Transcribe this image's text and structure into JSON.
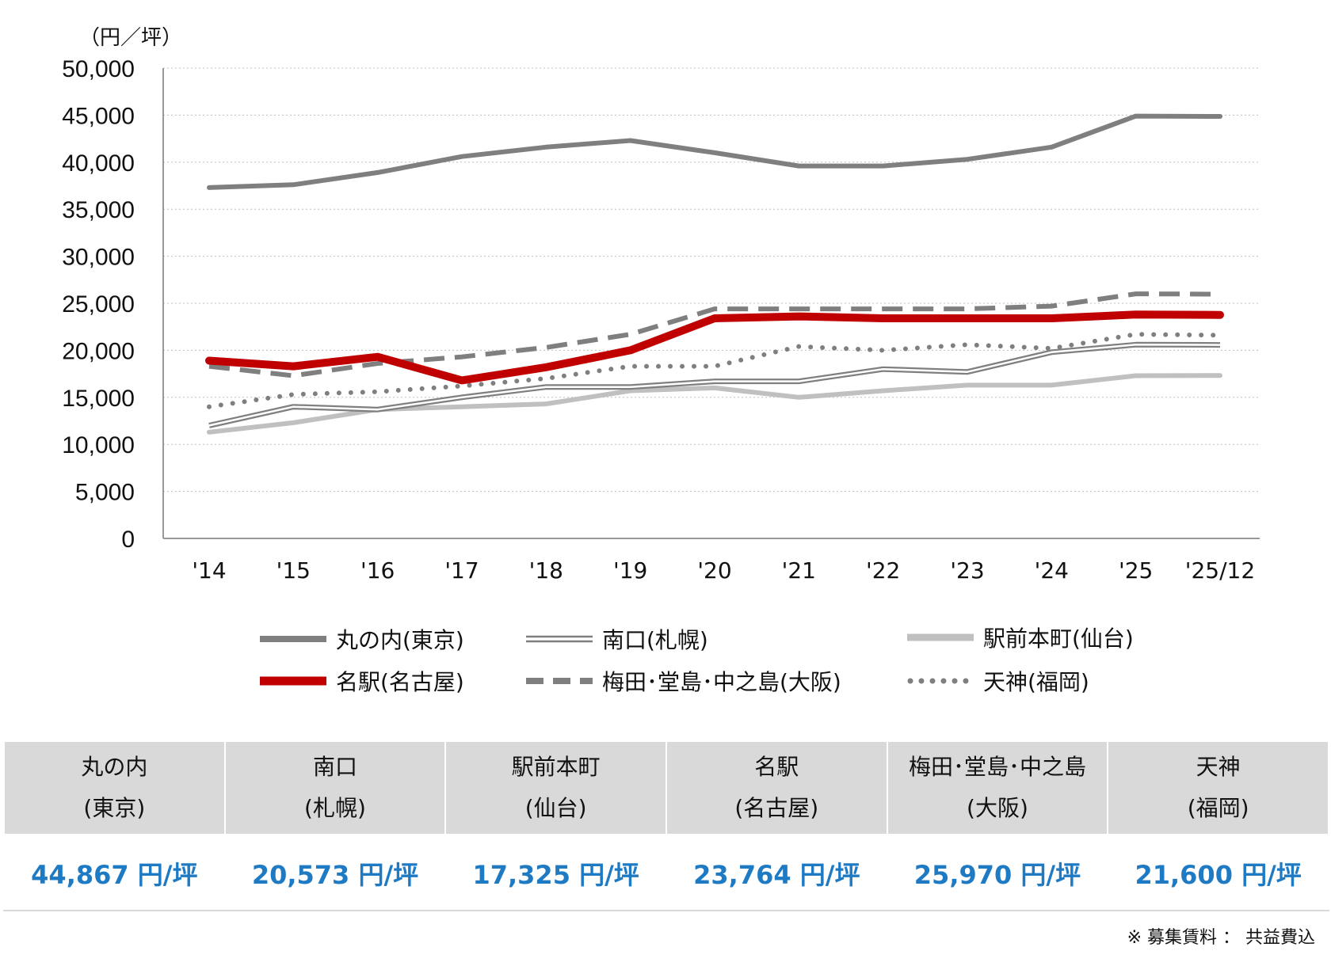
{
  "chart_data": {
    "type": "line",
    "unit_label": "（円／坪）",
    "categories": [
      "'14",
      "'15",
      "'16",
      "'17",
      "'18",
      "'19",
      "'20",
      "'21",
      "'22",
      "'23",
      "'24",
      "'25",
      "'25/12"
    ],
    "ylim": [
      0,
      50000
    ],
    "yticks": [
      0,
      5000,
      10000,
      15000,
      20000,
      25000,
      30000,
      35000,
      40000,
      45000,
      50000
    ],
    "ytick_labels": [
      "0",
      "5,000",
      "10,000",
      "15,000",
      "20,000",
      "25,000",
      "30,000",
      "35,000",
      "40,000",
      "45,000",
      "50,000"
    ],
    "grid": true,
    "series": [
      {
        "name": "丸の内(東京)",
        "color": "#7f7f7f",
        "style": "solid-thick",
        "values": [
          37300,
          37600,
          38900,
          40600,
          41600,
          42300,
          41000,
          39600,
          39600,
          40300,
          41600,
          44900,
          44867
        ]
      },
      {
        "name": "南口(札幌)",
        "color": "#7f7f7f",
        "style": "double",
        "values": [
          12000,
          14000,
          13700,
          15000,
          16100,
          16100,
          16700,
          16700,
          18000,
          17700,
          19800,
          20600,
          20573
        ]
      },
      {
        "name": "駅前本町(仙台)",
        "color": "#c0c0c0",
        "style": "solid-thick",
        "values": [
          11300,
          12300,
          13700,
          14000,
          14300,
          15700,
          16000,
          15000,
          15700,
          16300,
          16300,
          17300,
          17325
        ]
      },
      {
        "name": "名駅(名古屋)",
        "color": "#c00000",
        "style": "solid-heavy",
        "values": [
          18900,
          18300,
          19300,
          16800,
          18200,
          20000,
          23400,
          23600,
          23400,
          23400,
          23400,
          23800,
          23764
        ]
      },
      {
        "name": "梅田・堂島・中之島(大阪)",
        "color": "#7f7f7f",
        "style": "dashed",
        "values": [
          18300,
          17300,
          18600,
          19300,
          20300,
          21700,
          24400,
          24400,
          24400,
          24400,
          24700,
          26000,
          25970
        ]
      },
      {
        "name": "天神(福岡)",
        "color": "#7f7f7f",
        "style": "dotted",
        "values": [
          14000,
          15300,
          15600,
          16200,
          17000,
          18300,
          18300,
          20400,
          20000,
          20600,
          20200,
          21700,
          21600
        ]
      }
    ]
  },
  "legend": [
    {
      "label": "丸の内(東京)"
    },
    {
      "label": "南口(札幌)"
    },
    {
      "label": "駅前本町(仙台)"
    },
    {
      "label": "名駅(名古屋)"
    },
    {
      "label": "梅田･堂島･中之島(大阪)"
    },
    {
      "label": "天神(福岡)"
    }
  ],
  "summary_table": {
    "headers": [
      [
        "丸の内",
        "(東京)"
      ],
      [
        "南口",
        "(札幌)"
      ],
      [
        "駅前本町",
        "(仙台)"
      ],
      [
        "名駅",
        "(名古屋)"
      ],
      [
        "梅田･堂島･中之島",
        "(大阪)"
      ],
      [
        "天神",
        "(福岡)"
      ]
    ],
    "values": [
      "44,867 円/坪",
      "20,573 円/坪",
      "17,325 円/坪",
      "23,764 円/坪",
      "25,970 円/坪",
      "21,600 円/坪"
    ]
  },
  "note": "※ 募集賃料 ： 共益費込"
}
